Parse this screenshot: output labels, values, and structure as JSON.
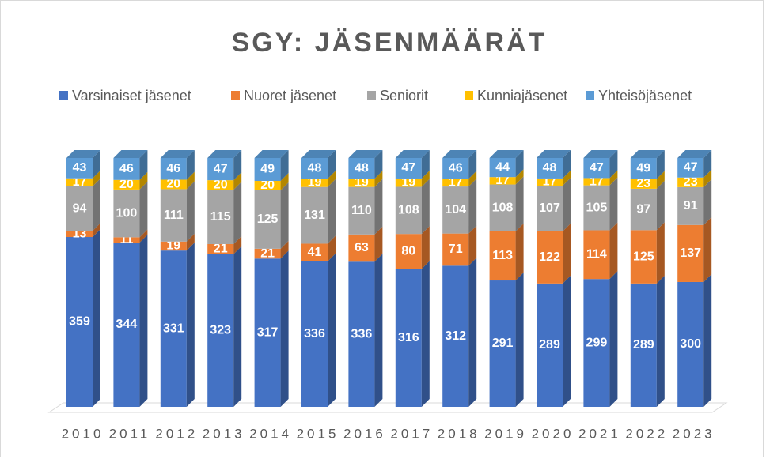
{
  "chart_data": {
    "type": "bar",
    "stacking": "percent",
    "title": "SGY: JÄSENMÄÄRÄT",
    "categories": [
      "2010",
      "2011",
      "2012",
      "2013",
      "2014",
      "2015",
      "2016",
      "2017",
      "2018",
      "2019",
      "2020",
      "2021",
      "2022",
      "2023"
    ],
    "series": [
      {
        "name": "Varsinaiset jäsenet",
        "color": "#4472c4",
        "values": [
          359,
          344,
          331,
          323,
          317,
          336,
          336,
          316,
          312,
          291,
          289,
          299,
          289,
          300
        ]
      },
      {
        "name": "Nuoret jäsenet",
        "color": "#ed7d31",
        "values": [
          13,
          11,
          19,
          21,
          21,
          41,
          63,
          80,
          71,
          113,
          122,
          114,
          125,
          137
        ]
      },
      {
        "name": "Seniorit",
        "color": "#a5a5a5",
        "values": [
          94,
          100,
          111,
          115,
          125,
          131,
          110,
          108,
          104,
          108,
          107,
          105,
          97,
          91
        ]
      },
      {
        "name": "Kunniajäsenet",
        "color": "#ffc000",
        "values": [
          17,
          20,
          20,
          20,
          20,
          19,
          19,
          19,
          17,
          17,
          17,
          17,
          23,
          23
        ]
      },
      {
        "name": "Yhteisöjäsenet",
        "color": "#5b9bd5",
        "values": [
          43,
          46,
          46,
          47,
          49,
          48,
          48,
          47,
          46,
          44,
          48,
          47,
          49,
          47
        ]
      }
    ]
  }
}
